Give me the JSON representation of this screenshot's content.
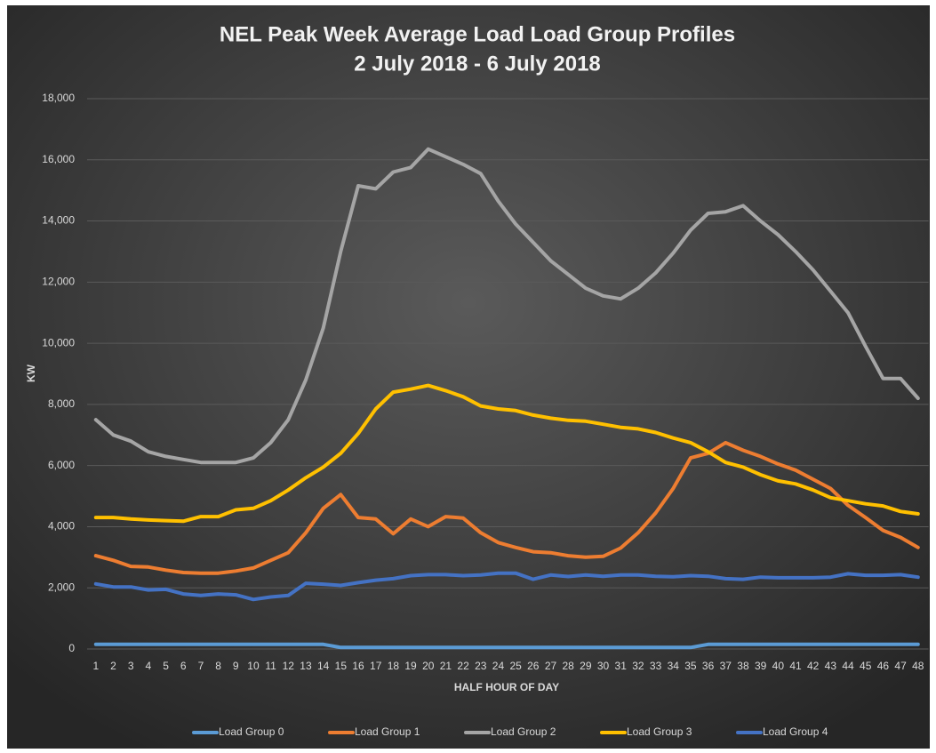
{
  "chart_data": {
    "type": "line",
    "title": "NEL Peak Week Average Load Load Group Profiles",
    "subtitle": "2 July 2018 - 6 July 2018",
    "x_label": "HALF HOUR OF DAY",
    "y_label": "KW",
    "categories": [
      1,
      2,
      3,
      4,
      5,
      6,
      7,
      8,
      9,
      10,
      11,
      12,
      13,
      14,
      15,
      16,
      17,
      18,
      19,
      20,
      21,
      22,
      23,
      24,
      25,
      26,
      27,
      28,
      29,
      30,
      31,
      32,
      33,
      34,
      35,
      36,
      37,
      38,
      39,
      40,
      41,
      42,
      43,
      44,
      45,
      46,
      47,
      48
    ],
    "series": [
      {
        "name": "Load Group 0",
        "color": "#5b9bd5",
        "values": [
          150,
          150,
          150,
          150,
          150,
          150,
          150,
          150,
          150,
          150,
          150,
          150,
          150,
          150,
          50,
          50,
          50,
          50,
          50,
          50,
          50,
          50,
          50,
          50,
          50,
          50,
          50,
          50,
          50,
          50,
          50,
          50,
          50,
          50,
          50,
          150,
          150,
          150,
          150,
          150,
          150,
          150,
          150,
          150,
          150,
          150,
          150,
          150
        ]
      },
      {
        "name": "Load Group 1",
        "color": "#ed7d31",
        "values": [
          3050,
          2900,
          2700,
          2680,
          2580,
          2500,
          2480,
          2480,
          2550,
          2650,
          2900,
          3150,
          3800,
          4600,
          5050,
          4300,
          4250,
          3770,
          4250,
          4000,
          4330,
          4280,
          3800,
          3480,
          3320,
          3180,
          3150,
          3050,
          3000,
          3030,
          3300,
          3800,
          4450,
          5250,
          6250,
          6400,
          6750,
          6500,
          6300,
          6050,
          5850,
          5550,
          5250,
          4700,
          4300,
          3880,
          3650,
          3320
        ]
      },
      {
        "name": "Load Group 2",
        "color": "#a5a5a5",
        "values": [
          7500,
          7000,
          6800,
          6450,
          6300,
          6200,
          6100,
          6100,
          6100,
          6250,
          6750,
          7500,
          8800,
          10500,
          13000,
          15150,
          15050,
          15600,
          15750,
          16350,
          16100,
          15850,
          15550,
          14650,
          13900,
          13300,
          12700,
          12250,
          11800,
          11550,
          11450,
          11800,
          12300,
          12950,
          13700,
          14250,
          14300,
          14500,
          14000,
          13550,
          13000,
          12400,
          11700,
          11000,
          9900,
          8850,
          8850,
          8200
        ]
      },
      {
        "name": "Load Group 3",
        "color": "#ffc000",
        "values": [
          4300,
          4300,
          4250,
          4220,
          4200,
          4180,
          4330,
          4330,
          4550,
          4600,
          4850,
          5200,
          5600,
          5950,
          6400,
          7050,
          7850,
          8400,
          8500,
          8620,
          8450,
          8250,
          7950,
          7850,
          7800,
          7650,
          7550,
          7480,
          7450,
          7350,
          7250,
          7200,
          7080,
          6900,
          6750,
          6450,
          6100,
          5950,
          5700,
          5500,
          5400,
          5200,
          4950,
          4850,
          4750,
          4680,
          4500,
          4420
        ]
      },
      {
        "name": "Load Group 4",
        "color": "#4472c4",
        "values": [
          2130,
          2030,
          2030,
          1930,
          1950,
          1800,
          1750,
          1800,
          1770,
          1620,
          1700,
          1750,
          2150,
          2120,
          2080,
          2170,
          2250,
          2300,
          2400,
          2430,
          2430,
          2400,
          2420,
          2480,
          2480,
          2280,
          2420,
          2370,
          2420,
          2380,
          2420,
          2420,
          2380,
          2360,
          2400,
          2380,
          2300,
          2280,
          2350,
          2330,
          2330,
          2330,
          2350,
          2460,
          2410,
          2410,
          2430,
          2350
        ]
      }
    ],
    "ylim": [
      0,
      18000
    ],
    "yticks": [
      0,
      {
        "value": 2000,
        "label": "2,000"
      },
      {
        "value": 4000,
        "label": "4,000"
      },
      {
        "value": 6000,
        "label": "6,000"
      },
      {
        "value": 8000,
        "label": "8,000"
      },
      {
        "value": 10000,
        "label": "10,000"
      },
      {
        "value": 12000,
        "label": "12,000"
      },
      {
        "value": 14000,
        "label": "14,000"
      },
      {
        "value": 16000,
        "label": "16,000"
      },
      {
        "value": 18000,
        "label": "18,000"
      }
    ],
    "grid": true,
    "legend": "bottom"
  }
}
